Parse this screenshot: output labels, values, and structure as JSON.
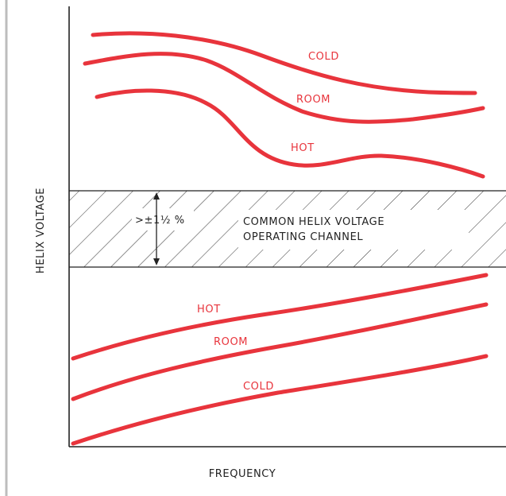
{
  "chart_data": {
    "type": "line",
    "xlabel": "FREQUENCY",
    "ylabel": "HELIX VOLTAGE",
    "x_ticks": [],
    "y_ticks": [],
    "grid": false,
    "colors": {
      "curve": "#e8343c",
      "axis": "#222222",
      "hatch": "#333333",
      "page_edge": "#bdbdbd"
    },
    "band": {
      "label_lines": [
        "COMMON HELIX VOLTAGE",
        "OPERATING CHANNEL"
      ],
      "width_label": ">±1½ %",
      "hatched": true
    },
    "upper_group": [
      {
        "name": "COLD",
        "shape": "high at low frequency, easing down toward high frequency"
      },
      {
        "name": "ROOM",
        "shape": "rises slightly then descends, flattening at high frequency"
      },
      {
        "name": "HOT",
        "shape": "drops steeply mid-band, small ripple, then continues downward"
      }
    ],
    "lower_group": [
      {
        "name": "HOT",
        "shape": "rising with frequency"
      },
      {
        "name": "ROOM",
        "shape": "rising with frequency"
      },
      {
        "name": "COLD",
        "shape": "rising with frequency"
      }
    ]
  }
}
